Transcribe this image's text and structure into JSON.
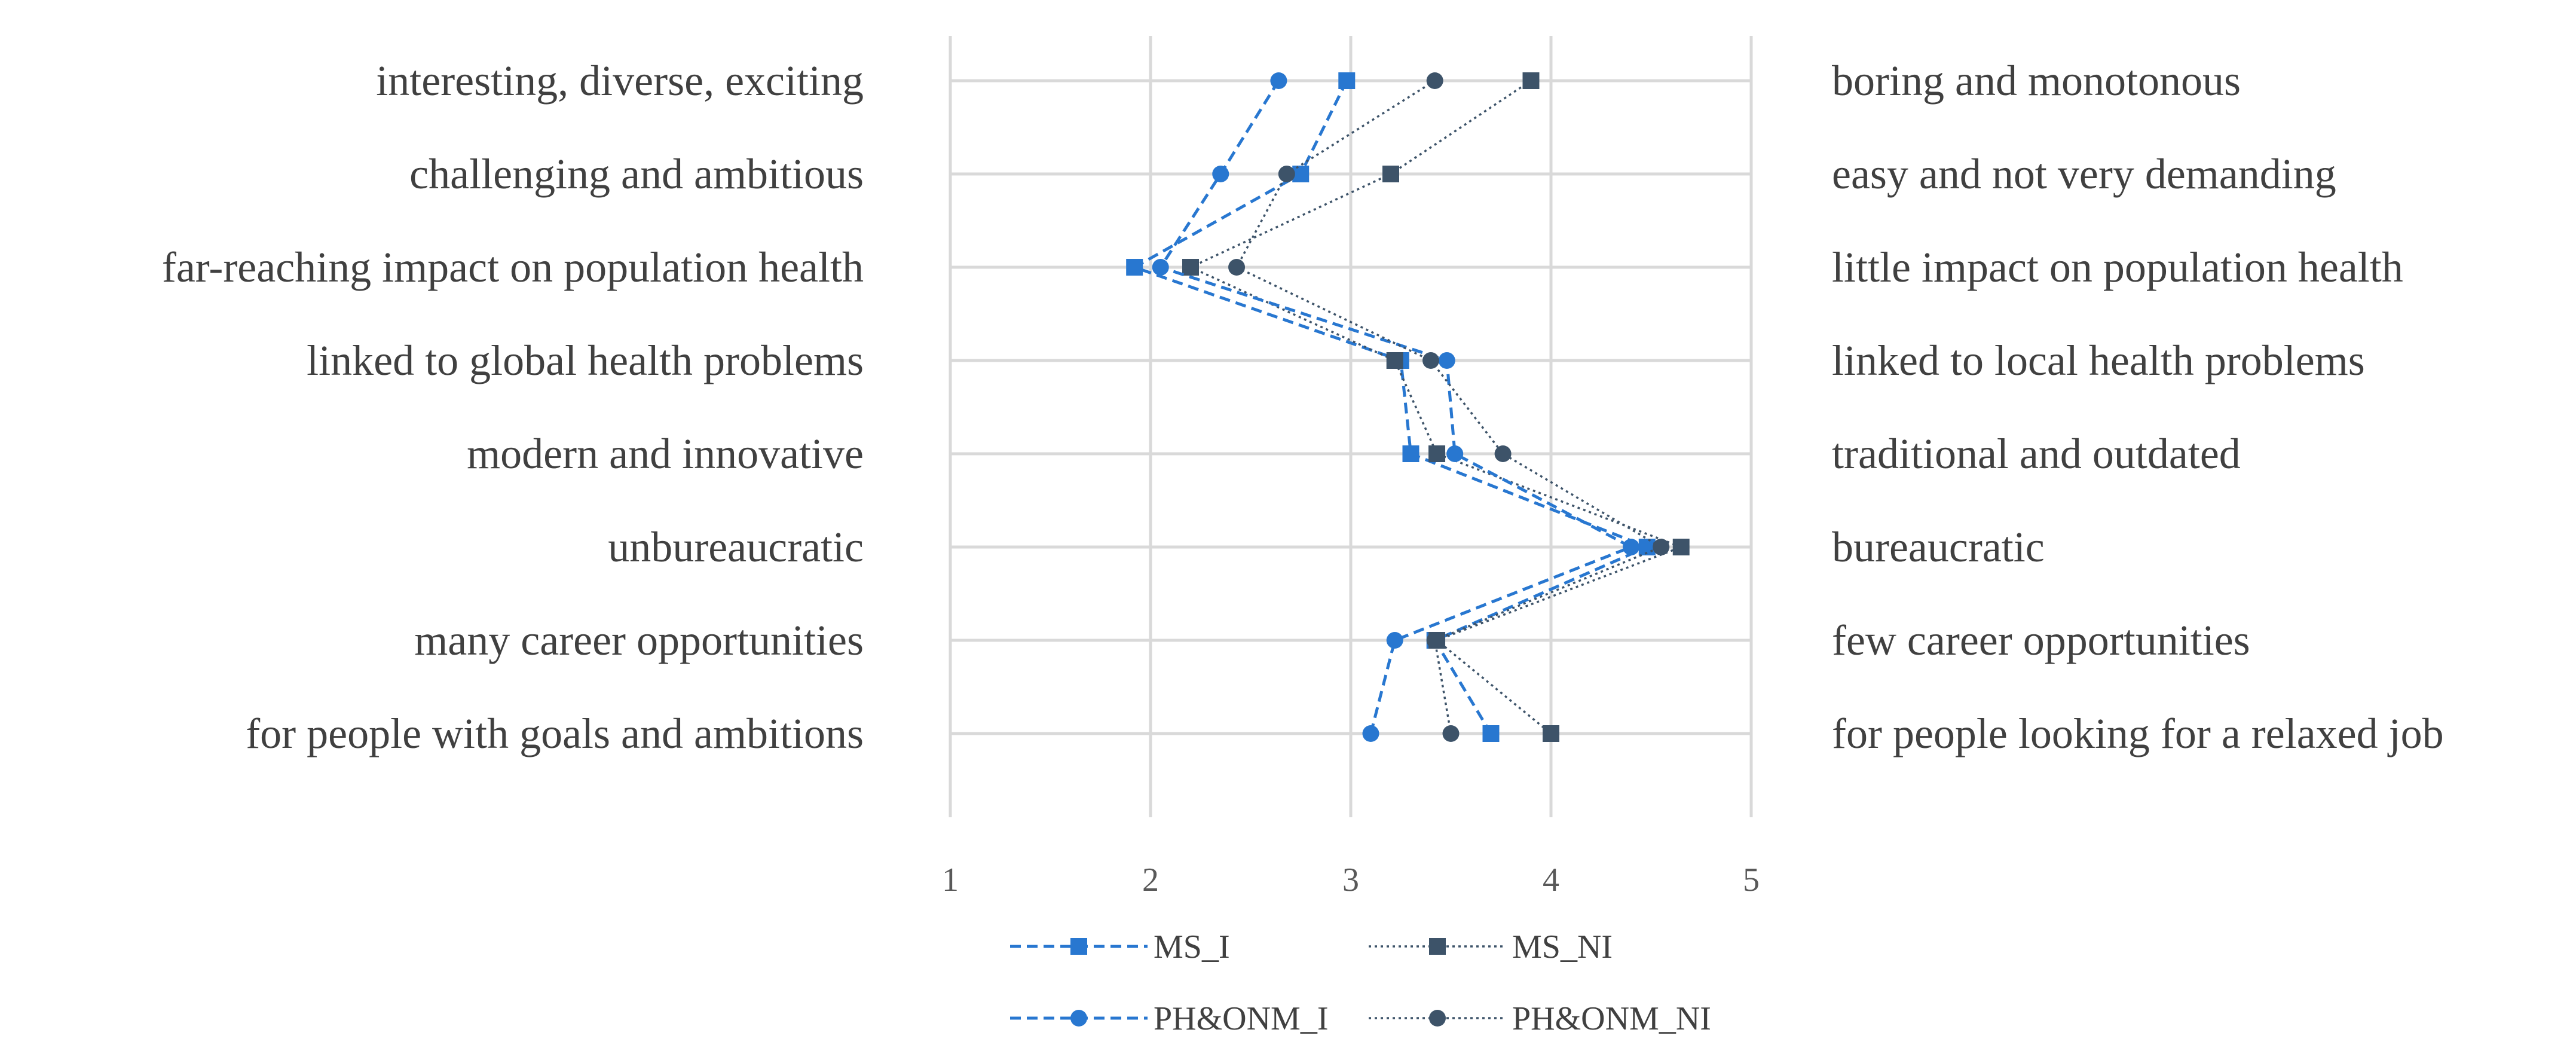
{
  "chart_data": {
    "type": "line",
    "orientation": "horizontal",
    "title": "",
    "xlabel": "",
    "ylabel": "",
    "xlim": [
      1,
      5
    ],
    "xticks": [
      "1",
      "2",
      "3",
      "4",
      "5"
    ],
    "grid": true,
    "legend_position": "bottom",
    "left_labels": [
      "interesting, diverse, exciting",
      "challenging and ambitious",
      "far-reaching impact on population health",
      "linked to global health problems",
      "modern and innovative",
      "unbureaucratic",
      "many career opportunities",
      "for people with goals and ambitions"
    ],
    "right_labels": [
      "boring and monotonous",
      "easy and not very demanding",
      "little impact on population health",
      "linked to local health problems",
      "traditional and outdated",
      "bureaucratic",
      "few career opportunities",
      "for people looking for a relaxed job"
    ],
    "series": [
      {
        "name": "MS_I",
        "color": "#2877D0",
        "marker": "square",
        "line": "dashed",
        "values": [
          2.98,
          2.75,
          1.92,
          3.25,
          3.3,
          4.48,
          3.42,
          3.7
        ]
      },
      {
        "name": "MS_NI",
        "color": "#3D5369",
        "marker": "square",
        "line": "dotted",
        "values": [
          3.9,
          3.2,
          2.2,
          3.22,
          3.43,
          4.65,
          3.43,
          4.0
        ]
      },
      {
        "name": "PH&ONM_I",
        "color": "#2877D0",
        "marker": "circle",
        "line": "dashed",
        "values": [
          2.64,
          2.35,
          2.05,
          3.48,
          3.52,
          4.4,
          3.22,
          3.1
        ]
      },
      {
        "name": "PH&ONM_NI",
        "color": "#3D5369",
        "marker": "circle",
        "line": "dotted",
        "values": [
          3.42,
          2.68,
          2.43,
          3.4,
          3.76,
          4.55,
          3.42,
          3.5
        ]
      }
    ]
  }
}
